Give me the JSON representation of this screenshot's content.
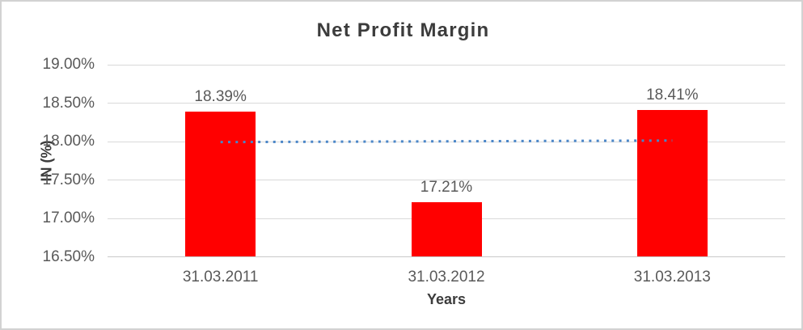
{
  "chart_data": {
    "type": "bar",
    "title": "Net Profit Margin",
    "xlabel": "Years",
    "ylabel": "IN (%)",
    "categories": [
      "31.03.2011",
      "31.03.2012",
      "31.03.2013"
    ],
    "values": [
      18.39,
      17.21,
      18.41
    ],
    "data_labels": [
      "18.39%",
      "17.21%",
      "18.41%"
    ],
    "ylim": [
      16.5,
      19.0
    ],
    "ytick_step": 0.5,
    "ytick_labels": [
      "16.50%",
      "17.00%",
      "17.50%",
      "18.00%",
      "18.50%",
      "19.00%"
    ],
    "grid": true,
    "legend": "none",
    "trendline": {
      "style": "dotted",
      "points": [
        17.993,
        18.003,
        18.013
      ]
    }
  },
  "colors": {
    "bar": "#ff0000",
    "trendline": "#4a86c8",
    "gridline": "#d9d9d9",
    "axis_line": "#c9c9c9",
    "title_text": "#3c3c3c",
    "label_text": "#595959",
    "border": "#d2d2d2",
    "background": "#ffffff"
  }
}
